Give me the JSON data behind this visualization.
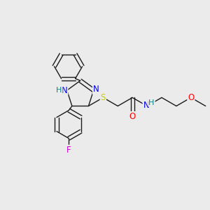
{
  "bg_color": "#ebebeb",
  "bond_color": "#1a1a1a",
  "figsize": [
    3.0,
    3.0
  ],
  "dpi": 100,
  "atom_colors": {
    "N": "#0000ee",
    "NH": "#008888",
    "S": "#cccc00",
    "O": "#ff0000",
    "F": "#cc00cc",
    "C": "#1a1a1a"
  }
}
